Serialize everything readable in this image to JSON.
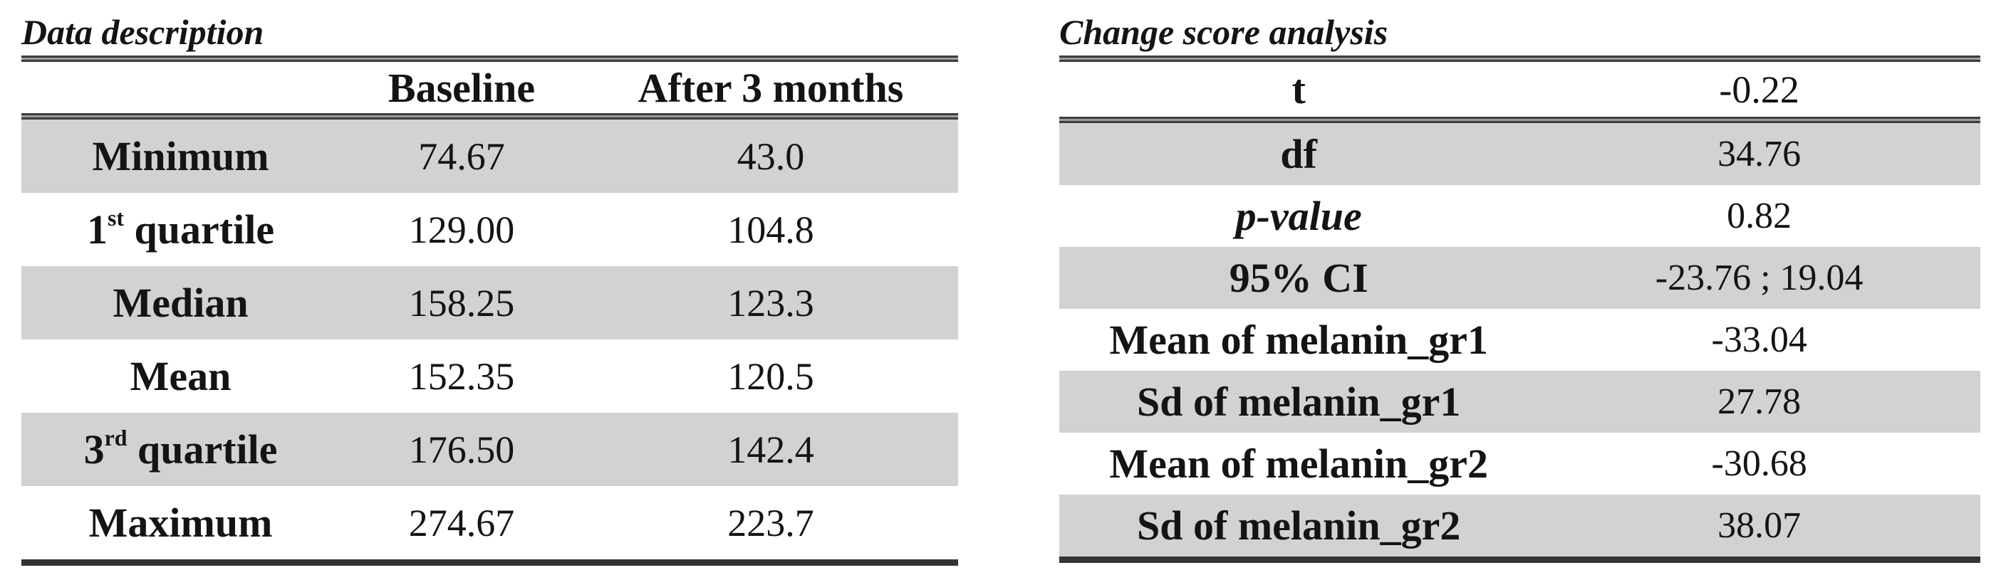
{
  "colors": {
    "row_shade": "#d2d2d2",
    "rule_dark": "#3d3d3d",
    "bottom_rule": "#343434",
    "text": "#141414",
    "background": "#ffffff"
  },
  "left_table": {
    "title": "Data description",
    "columns": [
      "",
      "Baseline",
      "After 3 months"
    ],
    "rows": [
      {
        "label_base": "Minimum",
        "label_sup": "",
        "label_rest": "",
        "baseline": "74.67",
        "after": "43.0"
      },
      {
        "label_base": "1",
        "label_sup": "st",
        "label_rest": " quartile",
        "baseline": "129.00",
        "after": "104.8"
      },
      {
        "label_base": "Median",
        "label_sup": "",
        "label_rest": "",
        "baseline": "158.25",
        "after": "123.3"
      },
      {
        "label_base": "Mean",
        "label_sup": "",
        "label_rest": "",
        "baseline": "152.35",
        "after": "120.5"
      },
      {
        "label_base": "3",
        "label_sup": "rd",
        "label_rest": " quartile",
        "baseline": "176.50",
        "after": "142.4"
      },
      {
        "label_base": "Maximum",
        "label_sup": "",
        "label_rest": "",
        "baseline": "274.67",
        "after": "223.7"
      }
    ]
  },
  "right_table": {
    "title": "Change score analysis",
    "header": {
      "label": "t",
      "value": "-0.22"
    },
    "rows": [
      {
        "label": "df",
        "value": "34.76"
      },
      {
        "label": "p-value",
        "value": "0.82"
      },
      {
        "label": "95% CI",
        "value": "-23.76 ; 19.04"
      },
      {
        "label": "Mean of melanin_gr1",
        "value": "-33.04"
      },
      {
        "label": "Sd of melanin_gr1",
        "value": "27.78"
      },
      {
        "label": "Mean of melanin_gr2",
        "value": "-30.68"
      },
      {
        "label": "Sd of melanin_gr2",
        "value": "38.07"
      }
    ]
  }
}
